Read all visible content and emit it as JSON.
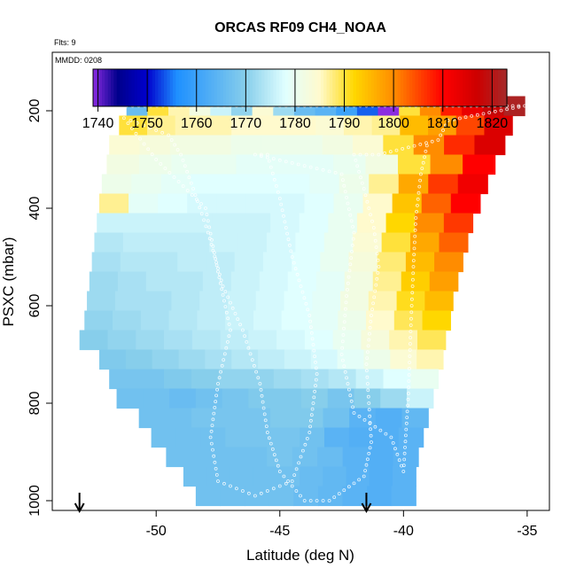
{
  "chart_data": {
    "type": "heatmap",
    "title": "ORCAS RF09 CH4_NOAA",
    "flights_note": "Flts: 9",
    "date_note": "MMDD: 0208",
    "xlabel": "Latitude (deg N)",
    "ylabel": "PSXC (mbar)",
    "xlim": [
      -54.2,
      -34.1
    ],
    "ylim": [
      1020,
      80
    ],
    "x_ticks": [
      -50,
      -45,
      -40,
      -35
    ],
    "y_ticks": [
      200,
      400,
      600,
      800,
      1000
    ],
    "x_tick_labels": [
      "-50",
      "-45",
      "-40",
      "-35"
    ],
    "y_tick_labels": [
      "200",
      "400",
      "600",
      "800",
      "1000"
    ],
    "colorbar": {
      "min": 1739,
      "max": 1823,
      "ticks": [
        1740,
        1750,
        1760,
        1770,
        1780,
        1790,
        1800,
        1810,
        1820
      ],
      "tick_labels": [
        "1740",
        "1750",
        "1760",
        "1770",
        "1780",
        "1790",
        "1800",
        "1810",
        "1820"
      ],
      "stops": [
        {
          "v": 1739,
          "c": "#8a2be2"
        },
        {
          "v": 1744,
          "c": "#00008b"
        },
        {
          "v": 1750,
          "c": "#0000cd"
        },
        {
          "v": 1756,
          "c": "#1e90ff"
        },
        {
          "v": 1770,
          "c": "#87ceeb"
        },
        {
          "v": 1778,
          "c": "#e0ffff"
        },
        {
          "v": 1785,
          "c": "#fffacd"
        },
        {
          "v": 1792,
          "c": "#ffd700"
        },
        {
          "v": 1800,
          "c": "#ff8c00"
        },
        {
          "v": 1810,
          "c": "#ff0000"
        },
        {
          "v": 1817,
          "c": "#cd0000"
        },
        {
          "v": 1823,
          "c": "#a52a2a"
        }
      ]
    },
    "arrows_at_latitude": [
      -53.1,
      -41.5
    ],
    "rows": [
      {
        "p": 190,
        "lat_min": -51.2,
        "lat_max": -35.1,
        "v": [
          1766,
          1790,
          1786,
          1782,
          1776,
          1771,
          1784,
          1772,
          1766,
          1764,
          1760,
          1754,
          1738,
          1790,
          1800,
          1808,
          1813,
          1818,
          1822
        ]
      },
      {
        "p": 230,
        "lat_min": -51.5,
        "lat_max": -35.6,
        "v": [
          1790,
          1787,
          1786,
          1786,
          1785,
          1785,
          1785,
          1784,
          1786,
          1787,
          1795,
          1798,
          1805,
          1815
        ]
      },
      {
        "p": 270,
        "lat_min": -51.9,
        "lat_max": -35.9,
        "v": [
          1784,
          1783,
          1782,
          1782,
          1781,
          1781,
          1781,
          1782,
          1784,
          1790,
          1800,
          1807,
          1815
        ]
      },
      {
        "p": 310,
        "lat_min": -52.0,
        "lat_max": -36.3,
        "v": [
          1782,
          1781,
          1780,
          1780,
          1779,
          1779,
          1779,
          1780,
          1782,
          1790,
          1800,
          1810
        ]
      },
      {
        "p": 350,
        "lat_min": -52.2,
        "lat_max": -36.6,
        "v": [
          1781,
          1780,
          1779,
          1778,
          1778,
          1778,
          1778,
          1779,
          1781,
          1787,
          1797,
          1806,
          1812
        ]
      },
      {
        "p": 390,
        "lat_min": -52.3,
        "lat_max": -36.9,
        "v": [
          1787,
          1779,
          1778,
          1777,
          1777,
          1777,
          1777,
          1778,
          1780,
          1785,
          1794,
          1803,
          1810
        ]
      },
      {
        "p": 430,
        "lat_min": -52.4,
        "lat_max": -37.2,
        "v": [
          1776,
          1776,
          1776,
          1776,
          1776,
          1776,
          1777,
          1778,
          1780,
          1785,
          1792,
          1800,
          1806
        ]
      },
      {
        "p": 470,
        "lat_min": -52.5,
        "lat_max": -37.4,
        "v": [
          1774,
          1775,
          1775,
          1775,
          1776,
          1776,
          1777,
          1778,
          1780,
          1784,
          1790,
          1797,
          1803
        ]
      },
      {
        "p": 510,
        "lat_min": -52.6,
        "lat_max": -37.6,
        "v": [
          1773,
          1774,
          1774,
          1775,
          1775,
          1776,
          1777,
          1778,
          1780,
          1783,
          1788,
          1795,
          1800
        ]
      },
      {
        "p": 550,
        "lat_min": -52.7,
        "lat_max": -37.8,
        "v": [
          1772,
          1773,
          1774,
          1774,
          1775,
          1776,
          1777,
          1778,
          1779,
          1782,
          1787,
          1793,
          1798
        ]
      },
      {
        "p": 590,
        "lat_min": -52.8,
        "lat_max": -38.0,
        "v": [
          1772,
          1773,
          1773,
          1774,
          1775,
          1776,
          1777,
          1778,
          1779,
          1782,
          1786,
          1791,
          1795
        ]
      },
      {
        "p": 630,
        "lat_min": -52.9,
        "lat_max": -38.1,
        "v": [
          1771,
          1772,
          1773,
          1774,
          1775,
          1776,
          1777,
          1778,
          1779,
          1781,
          1785,
          1789,
          1792
        ]
      },
      {
        "p": 670,
        "lat_min": -53.1,
        "lat_max": -38.3,
        "v": [
          1770,
          1771,
          1772,
          1773,
          1774,
          1775,
          1776,
          1777,
          1778,
          1780,
          1783,
          1786,
          1789
        ]
      },
      {
        "p": 710,
        "lat_min": -52.3,
        "lat_max": -38.4,
        "v": [
          1769,
          1770,
          1771,
          1772,
          1773,
          1774,
          1775,
          1776,
          1777,
          1779,
          1781,
          1784,
          1786
        ]
      },
      {
        "p": 750,
        "lat_min": -51.9,
        "lat_max": -38.6,
        "v": [
          1768,
          1768,
          1769,
          1770,
          1771,
          1771,
          1772,
          1773,
          1774,
          1776,
          1778,
          1780
        ]
      },
      {
        "p": 790,
        "lat_min": -51.6,
        "lat_max": -38.8,
        "v": [
          1767,
          1767,
          1766,
          1767,
          1768,
          1769,
          1769,
          1770,
          1768,
          1770,
          1772,
          1776
        ]
      },
      {
        "p": 830,
        "lat_min": -50.7,
        "lat_max": -39.0,
        "v": [
          1767,
          1767,
          1768,
          1768,
          1768,
          1769,
          1769,
          1767,
          1764,
          1763,
          1765
        ]
      },
      {
        "p": 870,
        "lat_min": -50.2,
        "lat_max": -39.2,
        "v": [
          1767,
          1767,
          1767,
          1768,
          1768,
          1768,
          1767,
          1764,
          1763,
          1763,
          1764
        ]
      },
      {
        "p": 910,
        "lat_min": -49.6,
        "lat_max": -39.4,
        "v": [
          1767,
          1767,
          1767,
          1767,
          1768,
          1767,
          1766,
          1764,
          1763,
          1764
        ]
      },
      {
        "p": 950,
        "lat_min": -48.9,
        "lat_max": -39.5,
        "v": [
          1767,
          1767,
          1767,
          1767,
          1767,
          1766,
          1765,
          1764,
          1763,
          1764
        ]
      },
      {
        "p": 990,
        "lat_min": -48.4,
        "lat_max": -39.5,
        "v": [
          1767,
          1767,
          1767,
          1767,
          1766,
          1765,
          1764,
          1763,
          1764
        ]
      }
    ],
    "flight_track": [
      [
        -51.2,
        190
      ],
      [
        -48.0,
        190
      ],
      [
        -44.0,
        190
      ],
      [
        -40.0,
        190
      ],
      [
        -38.0,
        190
      ],
      [
        -35.1,
        190
      ],
      [
        -38.2,
        220
      ],
      [
        -38.6,
        260
      ],
      [
        -41.0,
        290
      ],
      [
        -42.0,
        290
      ],
      [
        -41.6,
        360
      ],
      [
        -41.2,
        440
      ],
      [
        -41.0,
        520
      ],
      [
        -41.3,
        620
      ],
      [
        -41.5,
        720
      ],
      [
        -41.4,
        800
      ],
      [
        -41.3,
        880
      ],
      [
        -41.6,
        950
      ],
      [
        -43.0,
        1000
      ],
      [
        -44.0,
        1000
      ],
      [
        -45.0,
        940
      ],
      [
        -45.5,
        860
      ],
      [
        -45.8,
        760
      ],
      [
        -46.5,
        650
      ],
      [
        -47.3,
        560
      ],
      [
        -47.9,
        450
      ],
      [
        -48.5,
        360
      ],
      [
        -49.0,
        290
      ],
      [
        -49.5,
        250
      ],
      [
        -50.5,
        230
      ],
      [
        -51.3,
        215
      ],
      [
        -50.0,
        300
      ],
      [
        -48.0,
        400
      ],
      [
        -47.5,
        530
      ],
      [
        -47.0,
        650
      ],
      [
        -47.5,
        760
      ],
      [
        -47.8,
        870
      ],
      [
        -47.5,
        960
      ],
      [
        -46.0,
        990
      ],
      [
        -44.5,
        960
      ],
      [
        -43.8,
        860
      ],
      [
        -43.5,
        740
      ],
      [
        -43.8,
        620
      ],
      [
        -44.5,
        500
      ],
      [
        -45.0,
        380
      ],
      [
        -45.5,
        290
      ],
      [
        -46.0,
        290
      ],
      [
        -42.5,
        330
      ],
      [
        -42.0,
        450
      ],
      [
        -42.3,
        580
      ],
      [
        -42.5,
        700
      ],
      [
        -42.0,
        820
      ],
      [
        -40.5,
        870
      ],
      [
        -40.0,
        940
      ],
      [
        -39.8,
        780
      ],
      [
        -39.7,
        640
      ],
      [
        -39.6,
        520
      ],
      [
        -39.5,
        420
      ],
      [
        -39.3,
        330
      ],
      [
        -39.0,
        260
      ]
    ]
  }
}
